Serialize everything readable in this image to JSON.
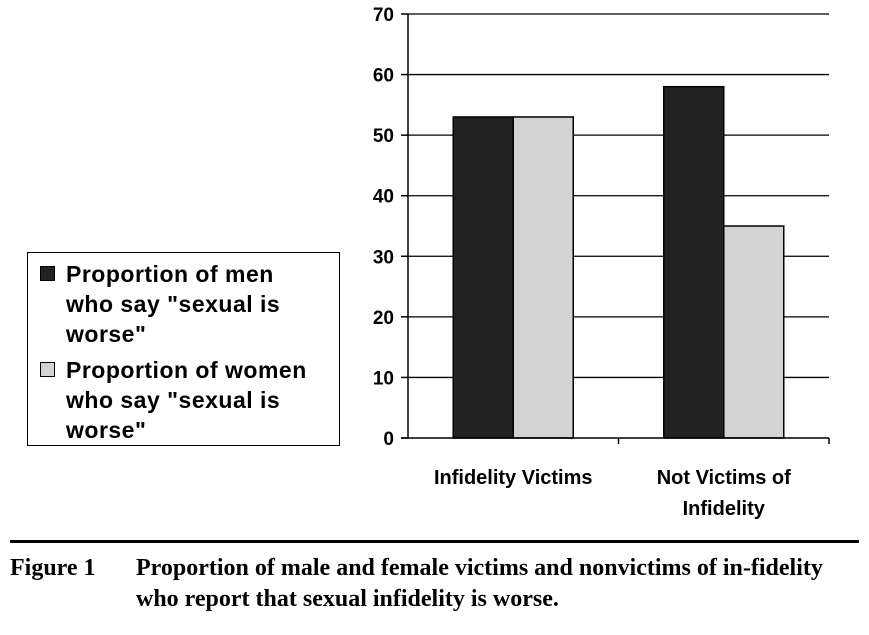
{
  "chart_data": {
    "type": "bar",
    "categories": [
      "Infidelity Victims",
      "Not Victims of Infidelity"
    ],
    "category_lines": [
      [
        "Infidelity Victims"
      ],
      [
        "Not Victims of",
        "Infidelity"
      ]
    ],
    "series": [
      {
        "name": "Proportion of men who say \"sexual is worse\"",
        "name_lines": [
          "Proportion of men",
          "who say \"sexual is",
          "worse\""
        ],
        "color": "#222222",
        "values": [
          53,
          58
        ]
      },
      {
        "name": "Proportion of women who say \"sexual is worse\"",
        "name_lines": [
          "Proportion of women",
          "who say \"sexual is",
          "worse\""
        ],
        "color": "#d3d3d3",
        "values": [
          53,
          35
        ]
      }
    ],
    "ylim": [
      0,
      70
    ],
    "yticks": [
      0,
      10,
      20,
      30,
      40,
      50,
      60,
      70
    ],
    "grid": true,
    "legend_position": "left"
  },
  "caption": {
    "number": "Figure 1",
    "text": "Proportion of male and female victims and nonvictims of in-fidelity who report that sexual infidelity is worse."
  }
}
